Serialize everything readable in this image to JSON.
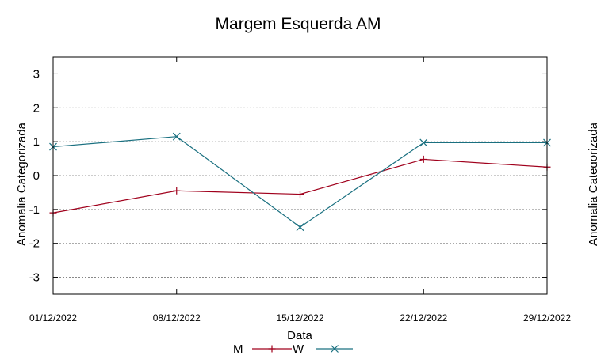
{
  "chart_data": {
    "type": "line",
    "title": "Margem Esquerda AM",
    "xlabel": "Data",
    "ylabel": "Anomalia Categorizada",
    "right_ylabel_fragment": "Anomalia Categorizada",
    "categories": [
      "01/12/2022",
      "08/12/2022",
      "15/12/2022",
      "22/12/2022",
      "29/12/2022"
    ],
    "ylim": [
      -3.5,
      3.5
    ],
    "yticks": [
      -3,
      -2,
      -1,
      0,
      1,
      2,
      3
    ],
    "ytick_labels": [
      "-3",
      "-2",
      "-1",
      "0",
      "1",
      "2",
      "3"
    ],
    "grid": true,
    "legend_position": "bottom-center",
    "series": [
      {
        "name": "M",
        "color": "#a0001c",
        "marker": "plus",
        "values": [
          -1.1,
          -0.45,
          -0.55,
          0.48,
          0.25
        ]
      },
      {
        "name": "W",
        "color": "#1a7080",
        "marker": "cross",
        "values": [
          0.85,
          1.15,
          -1.52,
          0.97,
          0.97
        ]
      }
    ]
  }
}
